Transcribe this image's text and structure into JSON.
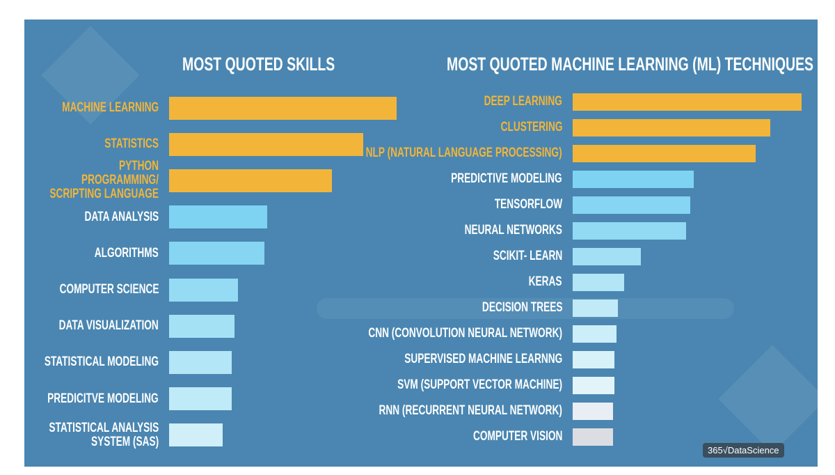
{
  "chart_data": [
    {
      "type": "bar",
      "orientation": "horizontal",
      "title": "MOST QUOTED SKILLS",
      "categories": [
        "MACHINE LEARNING",
        "STATISTICS",
        "PYTHON PROGRAMMING/\nSCRIPTING LANGUAGE",
        "DATA ANALYSIS",
        "ALGORITHMS",
        "COMPUTER SCIENCE",
        "DATA VISUALIZATION",
        "STATISTICAL MODELING",
        "PREDICITVE MODELING",
        "STATISTICAL ANALYSIS\nSYSTEM (SAS)"
      ],
      "values": [
        327,
        279,
        234,
        141,
        137,
        99,
        94,
        90,
        90,
        77
      ],
      "colors": [
        "#f2b53a",
        "#f2b53a",
        "#f2b53a",
        "#7fd3f2",
        "#85d5f3",
        "#95dbf4",
        "#a5e1f5",
        "#b3e6f6",
        "#bfeaf7",
        "#d0eff8"
      ],
      "label_colors": [
        "#f2b53a",
        "#f2b53a",
        "#f2b53a",
        "#ffffff",
        "#ffffff",
        "#ffffff",
        "#ffffff",
        "#ffffff",
        "#ffffff",
        "#ffffff"
      ],
      "xlim": [
        0,
        330
      ]
    },
    {
      "type": "bar",
      "orientation": "horizontal",
      "title": "MOST QUOTED  MACHINE LEARNING (ML) TECHNIQUES",
      "categories": [
        "DEEP LEARNING",
        "CLUSTERING",
        "NLP (NATURAL LANGUAGE PROCESSING)",
        "PREDICTIVE MODELING",
        "TENSORFLOW",
        "NEURAL NETWORKS",
        "SCIKIT- LEARN",
        "KERAS",
        "DECISION TREES",
        "CNN (CONVOLUTION NEURAL NETWORK)",
        "SUPERVISED MACHINE LEARNNG",
        "SVM (SUPPORT VECTOR MACHINE)",
        "RNN (RECURRENT NEURAL NETWORK)",
        "COMPUTER VISION"
      ],
      "values": [
        329,
        284,
        263,
        174,
        169,
        163,
        98,
        74,
        65,
        63,
        60,
        60,
        58,
        58
      ],
      "colors": [
        "#f2b53a",
        "#f2b53a",
        "#f2b53a",
        "#7fd3f2",
        "#85d5f3",
        "#92daf4",
        "#a3e0f5",
        "#b2e5f6",
        "#c0eaf7",
        "#cceef8",
        "#d8f2f9",
        "#e2f4f9",
        "#e8eef4",
        "#dcdde3"
      ],
      "label_colors": [
        "#f2b53a",
        "#f2b53a",
        "#f2b53a",
        "#ffffff",
        "#ffffff",
        "#ffffff",
        "#ffffff",
        "#ffffff",
        "#ffffff",
        "#ffffff",
        "#ffffff",
        "#ffffff",
        "#ffffff",
        "#ffffff"
      ],
      "xlim": [
        0,
        330
      ]
    }
  ],
  "logo": "365√DataScience"
}
